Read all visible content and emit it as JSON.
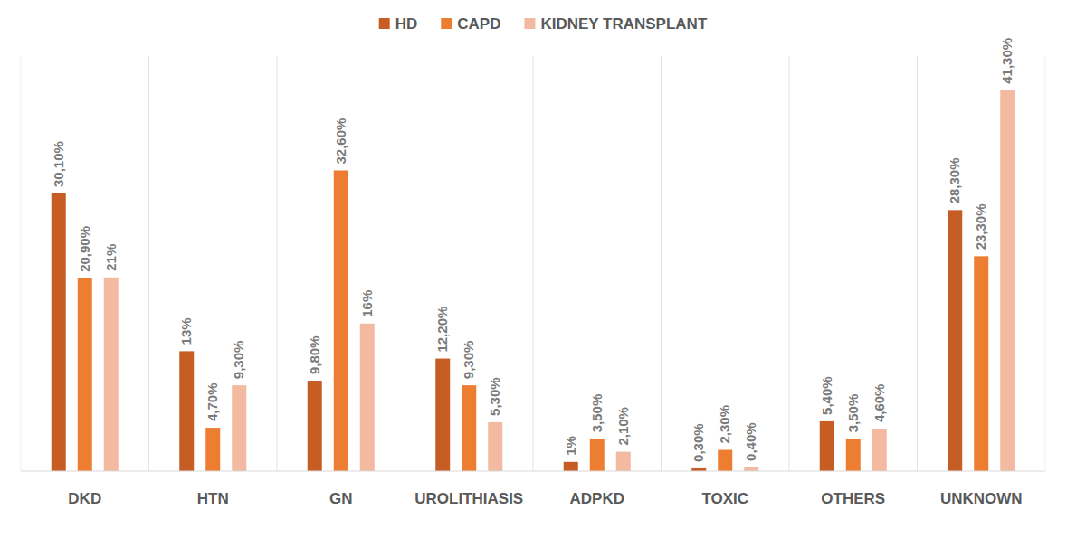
{
  "chart_data": {
    "type": "bar",
    "categories": [
      "DKD",
      "HTN",
      "GN",
      "UROLITHIASIS",
      "ADPKD",
      "TOXIC",
      "OTHERS",
      "UNKNOWN"
    ],
    "series": [
      {
        "name": "HD",
        "color": "#c65d25",
        "values": [
          30.1,
          13,
          9.8,
          12.2,
          1,
          0.3,
          5.4,
          28.3
        ],
        "value_labels": [
          "30,10%",
          "13%",
          "9,80%",
          "12,20%",
          "1%",
          "0,30%",
          "5,40%",
          "28,30%"
        ]
      },
      {
        "name": "CAPD",
        "color": "#ed7d31",
        "values": [
          20.9,
          4.7,
          32.6,
          9.3,
          3.5,
          2.3,
          3.5,
          23.3
        ],
        "value_labels": [
          "20,90%",
          "4,70%",
          "32,60%",
          "9,30%",
          "3,50%",
          "2,30%",
          "3,50%",
          "23,30%"
        ]
      },
      {
        "name": "KIDNEY TRANSPLANT",
        "color": "#f4b9a1",
        "values": [
          21,
          9.3,
          16,
          5.3,
          2.1,
          0.4,
          4.6,
          41.3
        ],
        "value_labels": [
          "21%",
          "9,30%",
          "16%",
          "5,30%",
          "2,10%",
          "0,40%",
          "4,60%",
          "41,30%"
        ]
      }
    ],
    "ylim": [
      0,
      45
    ],
    "yticks": [],
    "tick_labels": "x",
    "data_labels": true,
    "legend": "top"
  }
}
